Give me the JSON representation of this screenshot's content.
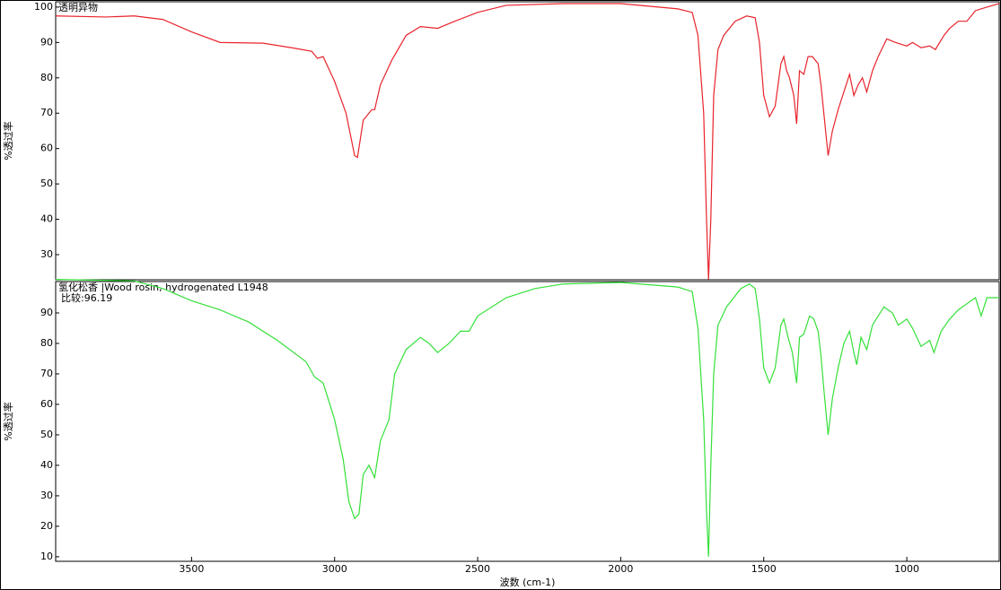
{
  "chart_data": [
    {
      "type": "line",
      "title": "透明异物",
      "ylabel": "%透过率",
      "color": "#e8242c",
      "xlim": [
        3975,
        677
      ],
      "ylim": [
        22.9,
        101.5
      ],
      "yticks": [
        30,
        40,
        50,
        60,
        70,
        80,
        90,
        100
      ],
      "x": [
        3975,
        3800,
        3700,
        3600,
        3500,
        3400,
        3250,
        3150,
        3080,
        3060,
        3040,
        3000,
        2960,
        2930,
        2920,
        2900,
        2870,
        2860,
        2840,
        2800,
        2750,
        2700,
        2640,
        2580,
        2500,
        2400,
        2200,
        2000,
        1800,
        1750,
        1730,
        1710,
        1700,
        1693,
        1685,
        1675,
        1660,
        1640,
        1600,
        1560,
        1530,
        1515,
        1500,
        1480,
        1460,
        1440,
        1430,
        1420,
        1410,
        1395,
        1385,
        1375,
        1360,
        1345,
        1330,
        1310,
        1300,
        1290,
        1275,
        1260,
        1240,
        1220,
        1200,
        1185,
        1170,
        1155,
        1140,
        1120,
        1100,
        1070,
        1040,
        1000,
        980,
        950,
        920,
        900,
        870,
        850,
        820,
        790,
        760,
        720,
        677
      ],
      "values": [
        97.5,
        97.2,
        97.5,
        96.5,
        93,
        90,
        89.8,
        88.5,
        87.5,
        85.5,
        86,
        79,
        70,
        58,
        57.5,
        68,
        71,
        71,
        78,
        85,
        92,
        94.5,
        94,
        96,
        98.5,
        100.5,
        101,
        101,
        99.5,
        98.5,
        92,
        70,
        40,
        23,
        40,
        75,
        88,
        92,
        96,
        97.5,
        97,
        90,
        75,
        69,
        72,
        84,
        86,
        82,
        80,
        75,
        67,
        82,
        81,
        86,
        86,
        84,
        78,
        70,
        58,
        65,
        71,
        76,
        81,
        75,
        78,
        80,
        76,
        82,
        86,
        91,
        90,
        89,
        90,
        88.5,
        89,
        88,
        92,
        94,
        96,
        96,
        99,
        100,
        101
      ]
    },
    {
      "type": "line",
      "title": "氢化松香 |Wood rosin, hydrogenated  L1948",
      "annotation": "比较:96.19",
      "ylabel": "%透过率",
      "xlabel": "波数 (cm-1)",
      "color": "#35e03a",
      "xlim": [
        3975,
        677
      ],
      "ylim": [
        8.5,
        100.3
      ],
      "yticks": [
        10,
        20,
        30,
        40,
        50,
        60,
        70,
        80,
        90
      ],
      "xticks": [
        3500,
        3000,
        2500,
        2000,
        1500,
        1000
      ],
      "x": [
        3975,
        3700,
        3600,
        3500,
        3400,
        3300,
        3200,
        3100,
        3070,
        3040,
        3000,
        2970,
        2950,
        2930,
        2915,
        2900,
        2880,
        2860,
        2840,
        2810,
        2790,
        2750,
        2700,
        2670,
        2640,
        2600,
        2560,
        2530,
        2500,
        2400,
        2300,
        2200,
        2000,
        1800,
        1750,
        1730,
        1710,
        1700,
        1693,
        1685,
        1675,
        1660,
        1630,
        1580,
        1550,
        1530,
        1515,
        1500,
        1480,
        1460,
        1440,
        1430,
        1415,
        1400,
        1385,
        1375,
        1360,
        1340,
        1325,
        1310,
        1300,
        1290,
        1275,
        1260,
        1240,
        1220,
        1200,
        1185,
        1175,
        1160,
        1140,
        1120,
        1100,
        1080,
        1050,
        1030,
        1000,
        980,
        950,
        920,
        905,
        880,
        850,
        820,
        790,
        760,
        740,
        720,
        677
      ],
      "values": [
        101,
        100.5,
        98,
        94,
        91,
        87,
        81,
        74,
        69,
        67,
        55,
        42,
        28,
        22.5,
        24,
        37,
        40,
        36,
        48,
        55,
        70,
        78,
        82,
        80,
        77,
        80,
        84,
        84,
        89,
        95,
        98,
        99.5,
        100,
        98.5,
        97,
        85,
        55,
        25,
        10,
        40,
        70,
        86,
        92,
        98,
        99.5,
        98,
        88,
        72,
        67,
        72,
        86,
        88,
        82,
        77,
        67,
        82,
        83,
        89,
        88,
        84,
        76,
        65,
        50,
        62,
        72,
        80,
        84,
        77,
        73,
        82,
        78,
        86,
        89,
        92,
        90,
        86,
        88,
        85,
        79,
        81,
        77,
        84,
        88,
        91,
        93,
        95,
        89,
        95,
        95
      ]
    }
  ]
}
